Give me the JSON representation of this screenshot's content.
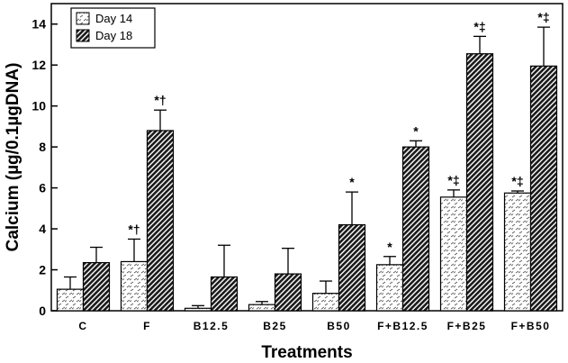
{
  "chart_data": {
    "type": "bar",
    "title": "",
    "xlabel": "Treatments",
    "ylabel": "Calcium (µg/0.1µgDNA)",
    "ylim": [
      0,
      15
    ],
    "yticks": [
      0,
      2,
      4,
      6,
      8,
      10,
      12,
      14
    ],
    "grid": false,
    "legend_position": "top-left",
    "categories": [
      "C",
      "F",
      "B12.5",
      "B25",
      "B50",
      "F+B12.5",
      "F+B25",
      "F+B50"
    ],
    "series": [
      {
        "name": "Day 14",
        "pattern": "light-dashes",
        "values": [
          1.05,
          2.4,
          0.12,
          0.3,
          0.85,
          2.25,
          5.55,
          5.75
        ],
        "errors": [
          0.6,
          1.1,
          0.13,
          0.15,
          0.6,
          0.4,
          0.35,
          0.1
        ],
        "annotations": [
          "",
          "*†",
          "",
          "",
          "",
          "*",
          "*‡",
          "*‡"
        ]
      },
      {
        "name": "Day 18",
        "pattern": "dark-hatch",
        "values": [
          2.35,
          8.8,
          1.65,
          1.8,
          4.2,
          8.0,
          12.55,
          11.95
        ],
        "errors": [
          0.75,
          1.0,
          1.55,
          1.25,
          1.6,
          0.3,
          0.85,
          1.9
        ],
        "annotations": [
          "",
          "*†",
          "",
          "",
          "*",
          "*",
          "*‡",
          "*‡"
        ]
      }
    ]
  }
}
